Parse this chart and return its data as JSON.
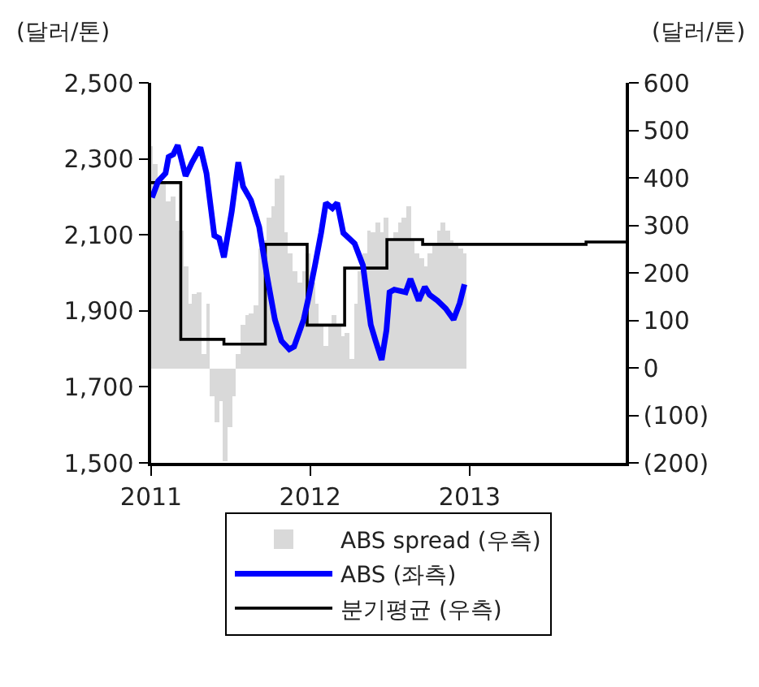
{
  "chart_data": {
    "type": "line",
    "ylabel": "(달러/톤)",
    "y2label": "(달러/톤)",
    "xlim": [
      "2011-01-01",
      "2013-12-25"
    ],
    "xticks": [
      "2011",
      "2012",
      "2013"
    ],
    "ylim": [
      1500,
      2500
    ],
    "yticks": [
      {
        "value": 1500,
        "label": "1,500"
      },
      {
        "value": 1700,
        "label": "1,700"
      },
      {
        "value": 1900,
        "label": "1,900"
      },
      {
        "value": 2100,
        "label": "2,100"
      },
      {
        "value": 2300,
        "label": "2,300"
      },
      {
        "value": 2500,
        "label": "2,500"
      }
    ],
    "y2lim": [
      -200,
      600
    ],
    "y2ticks": [
      {
        "value": -200,
        "label": "(200)"
      },
      {
        "value": -100,
        "label": "(100)"
      },
      0,
      100,
      200,
      300,
      400,
      500,
      600
    ],
    "legend": "bottom",
    "series": [
      {
        "name": "ABS spread (우측)",
        "type": "bar",
        "axis": "y2",
        "color": "#d9d9d9",
        "x": [
          "2011-01-01",
          "2011-01-11",
          "2011-01-21",
          "2011-01-31",
          "2011-02-10",
          "2011-02-20",
          "2011-03-02",
          "2011-03-12",
          "2011-03-22",
          "2011-04-01",
          "2011-04-11",
          "2011-04-21",
          "2011-05-01",
          "2011-05-11",
          "2011-05-21",
          "2011-05-31",
          "2011-06-10",
          "2011-06-20",
          "2011-06-30",
          "2011-07-10",
          "2011-07-20",
          "2011-07-30",
          "2011-08-09",
          "2011-08-19",
          "2011-08-29",
          "2011-09-08",
          "2011-09-18",
          "2011-09-28",
          "2011-10-08",
          "2011-10-18",
          "2011-10-28",
          "2011-11-07",
          "2011-11-17",
          "2011-11-27",
          "2011-12-07",
          "2011-12-17",
          "2011-12-27",
          "2012-01-06",
          "2012-01-16",
          "2012-01-26",
          "2012-02-05",
          "2012-02-15",
          "2012-02-25",
          "2012-03-06",
          "2012-03-16",
          "2012-03-26",
          "2012-04-05",
          "2012-04-15",
          "2012-04-25",
          "2012-05-05",
          "2012-05-15",
          "2012-05-25",
          "2012-06-04",
          "2012-06-14",
          "2012-06-24",
          "2012-07-04",
          "2012-07-14",
          "2012-07-24",
          "2012-08-03",
          "2012-08-13",
          "2012-08-23",
          "2012-09-02",
          "2012-09-12",
          "2012-09-22",
          "2012-10-02",
          "2012-10-12",
          "2012-10-22",
          "2012-11-01",
          "2012-11-11",
          "2012-11-21",
          "2012-12-01",
          "2012-12-11",
          "2012-12-21"
        ],
        "values": [
          465,
          430,
          400,
          390,
          350,
          360,
          310,
          290,
          215,
          135,
          155,
          160,
          30,
          135,
          -60,
          -115,
          -70,
          -195,
          -125,
          -60,
          30,
          90,
          110,
          115,
          130,
          250,
          270,
          315,
          340,
          400,
          405,
          285,
          240,
          205,
          180,
          205,
          240,
          180,
          135,
          90,
          45,
          90,
          110,
          90,
          65,
          75,
          20,
          135,
          205,
          240,
          290,
          285,
          305,
          285,
          315,
          270,
          285,
          305,
          315,
          340,
          270,
          240,
          230,
          215,
          240,
          260,
          290,
          305,
          290,
          270,
          260,
          250,
          240
        ]
      },
      {
        "name": "ABS (좌측)",
        "color": "#0000ff",
        "x": [
          "2011-01-03",
          "2011-01-17",
          "2011-02-03",
          "2011-02-10",
          "2011-02-21",
          "2011-03-03",
          "2011-03-21",
          "2011-04-05",
          "2011-04-24",
          "2011-05-08",
          "2011-05-26",
          "2011-06-06",
          "2011-06-17",
          "2011-07-05",
          "2011-07-20",
          "2011-07-31",
          "2011-08-18",
          "2011-09-06",
          "2011-09-24",
          "2011-10-12",
          "2011-10-27",
          "2011-11-14",
          "2011-11-25",
          "2011-12-17",
          "2011-12-28",
          "2012-01-12",
          "2012-01-26",
          "2012-02-06",
          "2012-02-21",
          "2012-03-03",
          "2012-03-17",
          "2012-04-12",
          "2012-05-01",
          "2012-05-19",
          "2012-05-30",
          "2012-06-13",
          "2012-06-24",
          "2012-07-01",
          "2012-07-12",
          "2012-08-07",
          "2012-08-18",
          "2012-09-06",
          "2012-09-20",
          "2012-10-01",
          "2012-10-19",
          "2012-11-07",
          "2012-11-25",
          "2012-12-09",
          "2012-12-20"
        ],
        "values": [
          2198,
          2241,
          2262,
          2305,
          2312,
          2336,
          2255,
          2291,
          2330,
          2262,
          2098,
          2091,
          2041,
          2162,
          2291,
          2227,
          2191,
          2120,
          1991,
          1877,
          1821,
          1799,
          1806,
          1877,
          1934,
          2020,
          2105,
          2184,
          2170,
          2184,
          2105,
          2077,
          2020,
          1863,
          1821,
          1771,
          1849,
          1949,
          1956,
          1949,
          1984,
          1927,
          1963,
          1942,
          1927,
          1906,
          1877,
          1920,
          1970
        ]
      },
      {
        "name": "분기평균 (우측)",
        "type": "step",
        "axis": "y2",
        "color": "#000000",
        "x": [
          "2011-01-01",
          "2011-03-10",
          "2011-06-17",
          "2011-09-20",
          "2011-12-25",
          "2012-03-20",
          "2012-06-25",
          "2012-09-15",
          "2013-09-25",
          "2013-12-25"
        ],
        "values": [
          390,
          60,
          50,
          260,
          90,
          210,
          270,
          260,
          265,
          265
        ]
      }
    ]
  }
}
